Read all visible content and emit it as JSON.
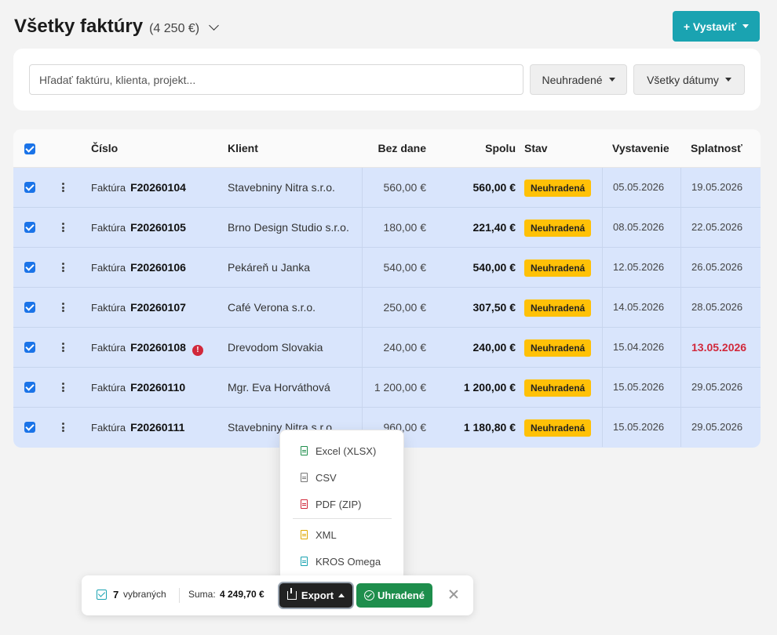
{
  "header": {
    "title": "Všetky faktúry",
    "total": "(4 250 €)",
    "issue_button": "+ Vystaviť"
  },
  "filters": {
    "search_placeholder": "Hľadať faktúru, klienta, projekt...",
    "status": "Neuhradené",
    "dates": "Všetky dátumy"
  },
  "table": {
    "columns": {
      "number": "Číslo",
      "client": "Klient",
      "net": "Bez dane",
      "total": "Spolu",
      "status": "Stav",
      "issued": "Vystavenie",
      "due": "Splatnosť"
    },
    "rows": [
      {
        "type": "Faktúra",
        "number": "F20260104",
        "client": "Stavebniny Nitra s.r.o.",
        "net": "560,00 €",
        "total": "560,00 €",
        "status": "Neuhradená",
        "issued": "05.05.2026",
        "due": "19.05.2026",
        "overdue": false
      },
      {
        "type": "Faktúra",
        "number": "F20260105",
        "client": "Brno Design Studio s.r.o.",
        "net": "180,00 €",
        "total": "221,40 €",
        "status": "Neuhradená",
        "issued": "08.05.2026",
        "due": "22.05.2026",
        "overdue": false
      },
      {
        "type": "Faktúra",
        "number": "F20260106",
        "client": "Pekáreň u Janka",
        "net": "540,00 €",
        "total": "540,00 €",
        "status": "Neuhradená",
        "issued": "12.05.2026",
        "due": "26.05.2026",
        "overdue": false
      },
      {
        "type": "Faktúra",
        "number": "F20260107",
        "client": "Café Verona s.r.o.",
        "net": "250,00 €",
        "total": "307,50 €",
        "status": "Neuhradená",
        "issued": "14.05.2026",
        "due": "28.05.2026",
        "overdue": false
      },
      {
        "type": "Faktúra",
        "number": "F20260108",
        "client": "Drevodom Slovakia",
        "net": "240,00 €",
        "total": "240,00 €",
        "status": "Neuhradená",
        "issued": "15.04.2026",
        "due": "13.05.2026",
        "overdue": true
      },
      {
        "type": "Faktúra",
        "number": "F20260110",
        "client": "Mgr. Eva Horváthová",
        "net": "1 200,00 €",
        "total": "1 200,00 €",
        "status": "Neuhradená",
        "issued": "15.05.2026",
        "due": "29.05.2026",
        "overdue": false
      },
      {
        "type": "Faktúra",
        "number": "F20260111",
        "client": "Stavebniny Nitra s.r.o.",
        "net": "960,00 €",
        "total": "1 180,80 €",
        "status": "Neuhradená",
        "issued": "15.05.2026",
        "due": "29.05.2026",
        "overdue": false
      }
    ]
  },
  "export_menu": {
    "items": [
      {
        "label": "Excel (XLSX)",
        "icon": "excel-file-icon",
        "color": "#1e8e4c"
      },
      {
        "label": "CSV",
        "icon": "csv-file-icon",
        "color": "#777777"
      },
      {
        "label": "PDF (ZIP)",
        "icon": "pdf-file-icon",
        "color": "#d1283b"
      },
      {
        "label": "XML",
        "icon": "xml-file-icon",
        "color": "#e0a800"
      },
      {
        "label": "KROS Omega",
        "icon": "kros-file-icon",
        "color": "#1aa3b1"
      }
    ]
  },
  "bulk_bar": {
    "count": "7",
    "selected_label": "vybraných",
    "sum_label": "Suma:",
    "sum_value": "4 249,70 €",
    "export_label": "Export",
    "paid_label": "Uhradené"
  },
  "colors": {
    "accent": "#1aa3b1",
    "selected_row": "#d9e5fc",
    "status_badge": "#ffc107",
    "paid_button": "#1e8e4c",
    "overdue": "#d1283b"
  }
}
